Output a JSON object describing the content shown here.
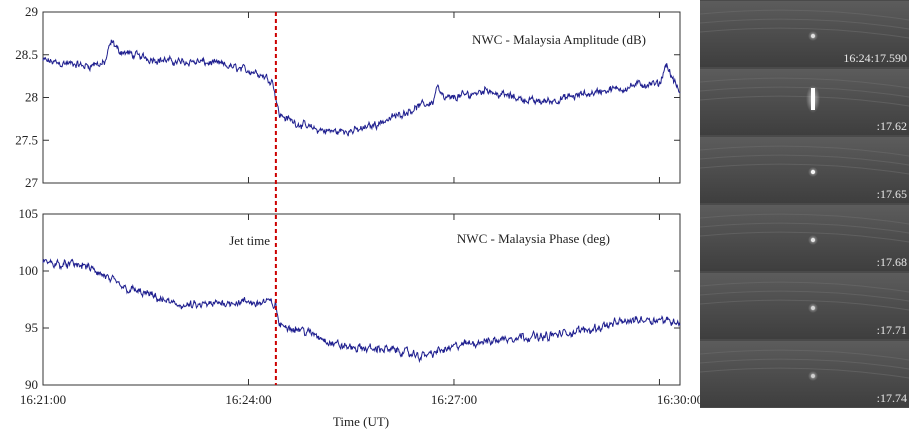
{
  "chart_data": {
    "shared_xlabel": "Time (UT)",
    "x_tick_labels": [
      "16:21:00",
      "16:24:00",
      "16:27:00",
      "16:30:00"
    ],
    "x_tick_minutes": [
      0,
      3,
      6,
      9
    ],
    "xlim_minutes": [
      0,
      9.3
    ],
    "jet": {
      "label": "Jet time",
      "time_minutes": 3.4,
      "color": "#cc0000"
    },
    "line_color": "#1f1f8f",
    "panels": [
      {
        "type": "line",
        "series_name": "NWC - Malaysia Amplitude (dB)",
        "ylim": [
          27,
          29
        ],
        "y_ticks": [
          27,
          27.5,
          28,
          28.5,
          29
        ],
        "y_tick_labels": [
          "27",
          "27.5",
          "28",
          "28.5",
          "29"
        ],
        "x_minutes": [
          0,
          0.3,
          0.6,
          0.9,
          1.0,
          1.1,
          1.3,
          1.6,
          1.9,
          2.2,
          2.5,
          2.8,
          3.1,
          3.35,
          3.4,
          3.45,
          3.7,
          4.0,
          4.3,
          4.6,
          4.9,
          5.2,
          5.5,
          5.7,
          5.75,
          5.85,
          6.0,
          6.3,
          6.5,
          6.6,
          6.9,
          7.2,
          7.5,
          7.8,
          8.1,
          8.4,
          8.7,
          9.0,
          9.1,
          9.2,
          9.3
        ],
        "values": [
          28.43,
          28.4,
          28.37,
          28.4,
          28.65,
          28.55,
          28.5,
          28.45,
          28.42,
          28.42,
          28.4,
          28.35,
          28.3,
          28.2,
          28.0,
          27.8,
          27.7,
          27.62,
          27.6,
          27.62,
          27.7,
          27.8,
          27.9,
          27.95,
          28.15,
          27.98,
          28.0,
          28.05,
          28.1,
          28.05,
          28.0,
          27.95,
          27.97,
          28.02,
          28.07,
          28.1,
          28.15,
          28.15,
          28.4,
          28.2,
          28.05
        ],
        "noise": 0.055
      },
      {
        "type": "line",
        "series_name": "NWC - Malaysia Phase (deg)",
        "ylim": [
          90,
          105
        ],
        "y_ticks": [
          90,
          95,
          100,
          105
        ],
        "y_tick_labels": [
          "90",
          "95",
          "100",
          "105"
        ],
        "x_minutes": [
          0,
          0.3,
          0.6,
          0.9,
          1.2,
          1.5,
          1.8,
          2.1,
          2.4,
          2.7,
          3.0,
          3.3,
          3.4,
          3.45,
          3.7,
          4.0,
          4.3,
          4.6,
          4.9,
          5.2,
          5.5,
          5.8,
          6.1,
          6.4,
          6.7,
          7.0,
          7.3,
          7.6,
          7.9,
          8.2,
          8.5,
          8.8,
          9.1,
          9.3
        ],
        "values": [
          100.8,
          100.6,
          100.5,
          99.5,
          98.5,
          98.0,
          97.3,
          96.9,
          97.0,
          97.3,
          97.2,
          97.3,
          97.0,
          95.2,
          95.0,
          94.3,
          93.5,
          93.2,
          93.2,
          93.0,
          92.5,
          93.0,
          93.5,
          93.8,
          94.0,
          94.3,
          94.2,
          94.5,
          94.8,
          95.2,
          95.6,
          95.8,
          95.7,
          95.5
        ],
        "noise": 0.45
      }
    ]
  },
  "frames": {
    "labels": [
      "16:24:17.590",
      ":17.62",
      ":17.65",
      ":17.68",
      ":17.71",
      ":17.74"
    ],
    "flash_brightness": [
      0.7,
      1.0,
      0.9,
      0.75,
      0.6,
      0.55
    ]
  }
}
